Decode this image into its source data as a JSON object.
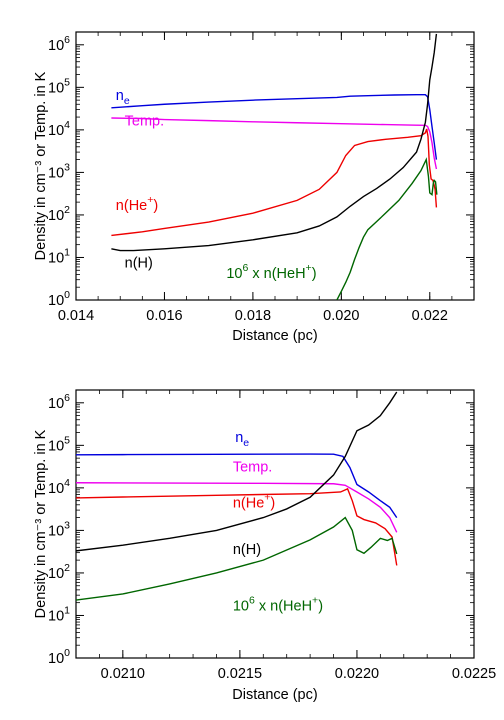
{
  "chart_data": [
    {
      "type": "line",
      "xlabel": "Distance (pc)",
      "ylabel": "Density in cm⁻³ or Temp. in K",
      "xlim": [
        0.014,
        0.023
      ],
      "ylim": [
        1,
        2000000
      ],
      "yscale": "log",
      "xticks": [
        "0.014",
        "0.016",
        "0.018",
        "0.020",
        "0.022"
      ],
      "yticks": [
        "10^0",
        "10^1",
        "10^2",
        "10^3",
        "10^4",
        "10^5",
        "10^6"
      ],
      "grid": false,
      "series": [
        {
          "name": "n_e",
          "label_main": "n",
          "label_sub": "e",
          "color": "#0000dd",
          "points": [
            [
              0.0148,
              33000
            ],
            [
              0.0155,
              37000
            ],
            [
              0.016,
              40000
            ],
            [
              0.017,
              45000
            ],
            [
              0.018,
              50000
            ],
            [
              0.019,
              54000
            ],
            [
              0.0199,
              58000
            ],
            [
              0.0202,
              62000
            ],
            [
              0.0207,
              64000
            ],
            [
              0.0212,
              66000
            ],
            [
              0.0217,
              67000
            ],
            [
              0.0219,
              67000
            ],
            [
              0.02195,
              60000
            ],
            [
              0.022,
              30000
            ],
            [
              0.02205,
              12000
            ],
            [
              0.0221,
              5000
            ],
            [
              0.02215,
              2000
            ]
          ]
        },
        {
          "name": "Temp.",
          "label_main": "Temp.",
          "label_sub": "",
          "color": "#ee00ee",
          "points": [
            [
              0.0148,
              19000
            ],
            [
              0.0155,
              18500
            ],
            [
              0.016,
              17500
            ],
            [
              0.017,
              16500
            ],
            [
              0.018,
              15500
            ],
            [
              0.019,
              14700
            ],
            [
              0.02,
              14000
            ],
            [
              0.021,
              13300
            ],
            [
              0.0217,
              12900
            ],
            [
              0.0219,
              12800
            ],
            [
              0.02195,
              12000
            ],
            [
              0.022,
              9000
            ],
            [
              0.02205,
              5000
            ],
            [
              0.0221,
              2200
            ],
            [
              0.02215,
              1200
            ]
          ]
        },
        {
          "name": "n(He+)",
          "label_main": "n(He",
          "label_sub": "+)",
          "color": "#ee0000",
          "points": [
            [
              0.0148,
              33
            ],
            [
              0.0155,
              40
            ],
            [
              0.016,
              48
            ],
            [
              0.017,
              68
            ],
            [
              0.018,
              110
            ],
            [
              0.019,
              220
            ],
            [
              0.0195,
              400
            ],
            [
              0.0199,
              1000
            ],
            [
              0.0201,
              2500
            ],
            [
              0.0203,
              4300
            ],
            [
              0.0206,
              5300
            ],
            [
              0.021,
              6000
            ],
            [
              0.0215,
              6700
            ],
            [
              0.0218,
              7300
            ],
            [
              0.0219,
              8500
            ],
            [
              0.02193,
              10500
            ],
            [
              0.02196,
              7000
            ],
            [
              0.02199,
              1500
            ],
            [
              0.02203,
              700
            ],
            [
              0.02207,
              650
            ],
            [
              0.0221,
              500
            ],
            [
              0.02212,
              400
            ],
            [
              0.02215,
              150
            ]
          ]
        },
        {
          "name": "n(H)",
          "label_main": "n(H)",
          "label_sub": "",
          "color": "#000000",
          "points": [
            [
              0.0148,
              16
            ],
            [
              0.015,
              14.5
            ],
            [
              0.0153,
              14.5
            ],
            [
              0.016,
              16
            ],
            [
              0.017,
              19
            ],
            [
              0.018,
              26
            ],
            [
              0.019,
              38
            ],
            [
              0.0195,
              55
            ],
            [
              0.0199,
              90
            ],
            [
              0.0202,
              160
            ],
            [
              0.0205,
              270
            ],
            [
              0.0208,
              420
            ],
            [
              0.0211,
              700
            ],
            [
              0.0214,
              1300
            ],
            [
              0.0217,
              3000
            ],
            [
              0.0218,
              6000
            ],
            [
              0.0219,
              15000
            ],
            [
              0.02195,
              40000
            ],
            [
              0.022,
              150000
            ],
            [
              0.02205,
              300000
            ],
            [
              0.0221,
              650000
            ],
            [
              0.02215,
              1800000
            ]
          ]
        },
        {
          "name": "10^6 x n(HeH+)",
          "label_main": "10",
          "label_sub": "",
          "color": "#006600",
          "points": [
            [
              0.0199,
              1.0
            ],
            [
              0.02,
              1.6
            ],
            [
              0.0201,
              2.6
            ],
            [
              0.0202,
              4.5
            ],
            [
              0.0203,
              9
            ],
            [
              0.0204,
              17
            ],
            [
              0.0205,
              30
            ],
            [
              0.0206,
              45
            ],
            [
              0.0208,
              70
            ],
            [
              0.021,
              110
            ],
            [
              0.0213,
              220
            ],
            [
              0.0216,
              550
            ],
            [
              0.0218,
              1100
            ],
            [
              0.02192,
              2000
            ],
            [
              0.02197,
              800
            ],
            [
              0.022,
              330
            ],
            [
              0.02205,
              300
            ],
            [
              0.02208,
              550
            ],
            [
              0.0221,
              650
            ],
            [
              0.02213,
              600
            ],
            [
              0.02216,
              300
            ]
          ]
        }
      ],
      "labels": [
        {
          "series": "n_e",
          "x": 0.0149,
          "y": 50000
        },
        {
          "series": "Temp.",
          "x": 0.0151,
          "y": 12500
        },
        {
          "series": "n(He+)",
          "x": 0.0149,
          "y": 130
        },
        {
          "series": "n(H)",
          "x": 0.0151,
          "y": 5.8
        },
        {
          "series": "10^6 x n(HeH+)",
          "x": 0.0174,
          "y": 3.3
        }
      ]
    },
    {
      "type": "line",
      "xlabel": "Distance (pc)",
      "ylabel": "Density in cm⁻³ or Temp. in K",
      "xlim": [
        0.0208,
        0.0225
      ],
      "ylim": [
        1,
        2000000
      ],
      "yscale": "log",
      "xticks": [
        "0.0210",
        "0.0215",
        "0.0220",
        "0.0225"
      ],
      "yticks": [
        "10^0",
        "10^1",
        "10^2",
        "10^3",
        "10^4",
        "10^5",
        "10^6"
      ],
      "grid": false,
      "series": [
        {
          "name": "n_e",
          "color": "#0000dd",
          "points": [
            [
              0.0208,
              60000
            ],
            [
              0.021,
              60500
            ],
            [
              0.0214,
              61500
            ],
            [
              0.0218,
              62500
            ],
            [
              0.0219,
              62000
            ],
            [
              0.02194,
              55000
            ],
            [
              0.02197,
              30000
            ],
            [
              0.022,
              12000
            ],
            [
              0.02205,
              8000
            ],
            [
              0.0221,
              5000
            ],
            [
              0.02214,
              3500
            ],
            [
              0.02217,
              2000
            ]
          ]
        },
        {
          "name": "Temp.",
          "color": "#ee00ee",
          "points": [
            [
              0.0208,
              13200
            ],
            [
              0.0212,
              13000
            ],
            [
              0.0216,
              12800
            ],
            [
              0.0219,
              12500
            ],
            [
              0.02195,
              11500
            ],
            [
              0.022,
              8000
            ],
            [
              0.02205,
              5500
            ],
            [
              0.0221,
              3500
            ],
            [
              0.02214,
              2000
            ],
            [
              0.02217,
              900
            ]
          ]
        },
        {
          "name": "n(He+)",
          "color": "#ee0000",
          "points": [
            [
              0.0208,
              5800
            ],
            [
              0.021,
              6100
            ],
            [
              0.0214,
              6700
            ],
            [
              0.0218,
              7300
            ],
            [
              0.02193,
              8000
            ],
            [
              0.02196,
              9500
            ],
            [
              0.02198,
              5000
            ],
            [
              0.022,
              2200
            ],
            [
              0.02203,
              1800
            ],
            [
              0.02208,
              1500
            ],
            [
              0.02212,
              1100
            ],
            [
              0.02215,
              700
            ],
            [
              0.02217,
              150
            ]
          ]
        },
        {
          "name": "n(H)",
          "color": "#000000",
          "points": [
            [
              0.0208,
              330
            ],
            [
              0.021,
              450
            ],
            [
              0.0212,
              650
            ],
            [
              0.0214,
              1000
            ],
            [
              0.0216,
              2000
            ],
            [
              0.0217,
              3200
            ],
            [
              0.0218,
              6000
            ],
            [
              0.0219,
              20000
            ],
            [
              0.02195,
              55000
            ],
            [
              0.022,
              220000
            ],
            [
              0.02205,
              300000
            ],
            [
              0.0221,
              500000
            ],
            [
              0.02214,
              1000000
            ],
            [
              0.02217,
              1800000
            ]
          ]
        },
        {
          "name": "10^6 x n(HeH+)",
          "color": "#006600",
          "points": [
            [
              0.0208,
              23
            ],
            [
              0.021,
              32
            ],
            [
              0.0212,
              55
            ],
            [
              0.0214,
              100
            ],
            [
              0.0216,
              200
            ],
            [
              0.0218,
              600
            ],
            [
              0.0219,
              1200
            ],
            [
              0.02195,
              2000
            ],
            [
              0.02198,
              1000
            ],
            [
              0.022,
              350
            ],
            [
              0.02203,
              290
            ],
            [
              0.02206,
              400
            ],
            [
              0.0221,
              650
            ],
            [
              0.02213,
              580
            ],
            [
              0.02215,
              650
            ],
            [
              0.02217,
              280
            ]
          ]
        }
      ],
      "labels": [
        {
          "series": "n_e",
          "x": 0.02148,
          "y": 120000
        },
        {
          "series": "Temp.",
          "x": 0.02147,
          "y": 24000
        },
        {
          "series": "n(He+)",
          "x": 0.02147,
          "y": 3500
        },
        {
          "series": "n(H)",
          "x": 0.02147,
          "y": 280
        },
        {
          "series": "10^6 x n(HeH+)",
          "x": 0.02147,
          "y": 13
        }
      ]
    }
  ]
}
